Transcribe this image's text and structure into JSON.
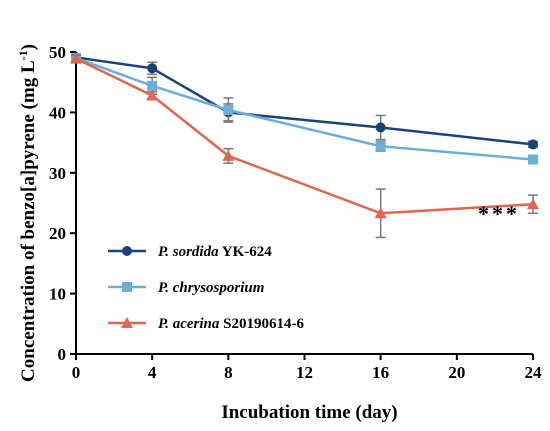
{
  "chart_data": {
    "type": "line",
    "xlabel": "Incubation time (day)",
    "ylabel_main": "Concentration of benzo[a]pyrene  (mg L",
    "ylabel_sup": "-1",
    "ylabel_close": ")",
    "xlim": [
      0,
      24
    ],
    "ylim": [
      0,
      50
    ],
    "xticks": [
      0,
      4,
      8,
      12,
      16,
      20,
      24
    ],
    "yticks": [
      0,
      10,
      20,
      30,
      40,
      50
    ],
    "legend_position": "bottom-left",
    "grid": false,
    "annotation": "***",
    "series": [
      {
        "name_italic": "P. sordida",
        "name_rest": " YK-624",
        "color": "#17427a",
        "marker": "circle",
        "x": [
          0,
          4,
          8,
          16,
          24
        ],
        "y": [
          49.1,
          47.3,
          40.0,
          37.5,
          34.7
        ],
        "err": [
          0.6,
          1.0,
          1.4,
          2.0,
          0.5
        ]
      },
      {
        "name_italic": "P. chrysosporium",
        "name_rest": "",
        "color": "#6aaed9",
        "marker": "square",
        "x": [
          0,
          4,
          8,
          16,
          24
        ],
        "y": [
          49.0,
          44.4,
          40.4,
          34.4,
          32.2
        ],
        "err": [
          0.6,
          1.4,
          2.0,
          0.8,
          0.6
        ]
      },
      {
        "name_italic": "P. acerina",
        "name_rest": " S20190614-6",
        "color": "#e06650",
        "marker": "triangle",
        "x": [
          0,
          4,
          8,
          16,
          24
        ],
        "y": [
          48.9,
          42.8,
          32.8,
          23.3,
          24.8
        ],
        "err": [
          0.6,
          0.6,
          1.2,
          4.0,
          1.5
        ]
      }
    ]
  }
}
